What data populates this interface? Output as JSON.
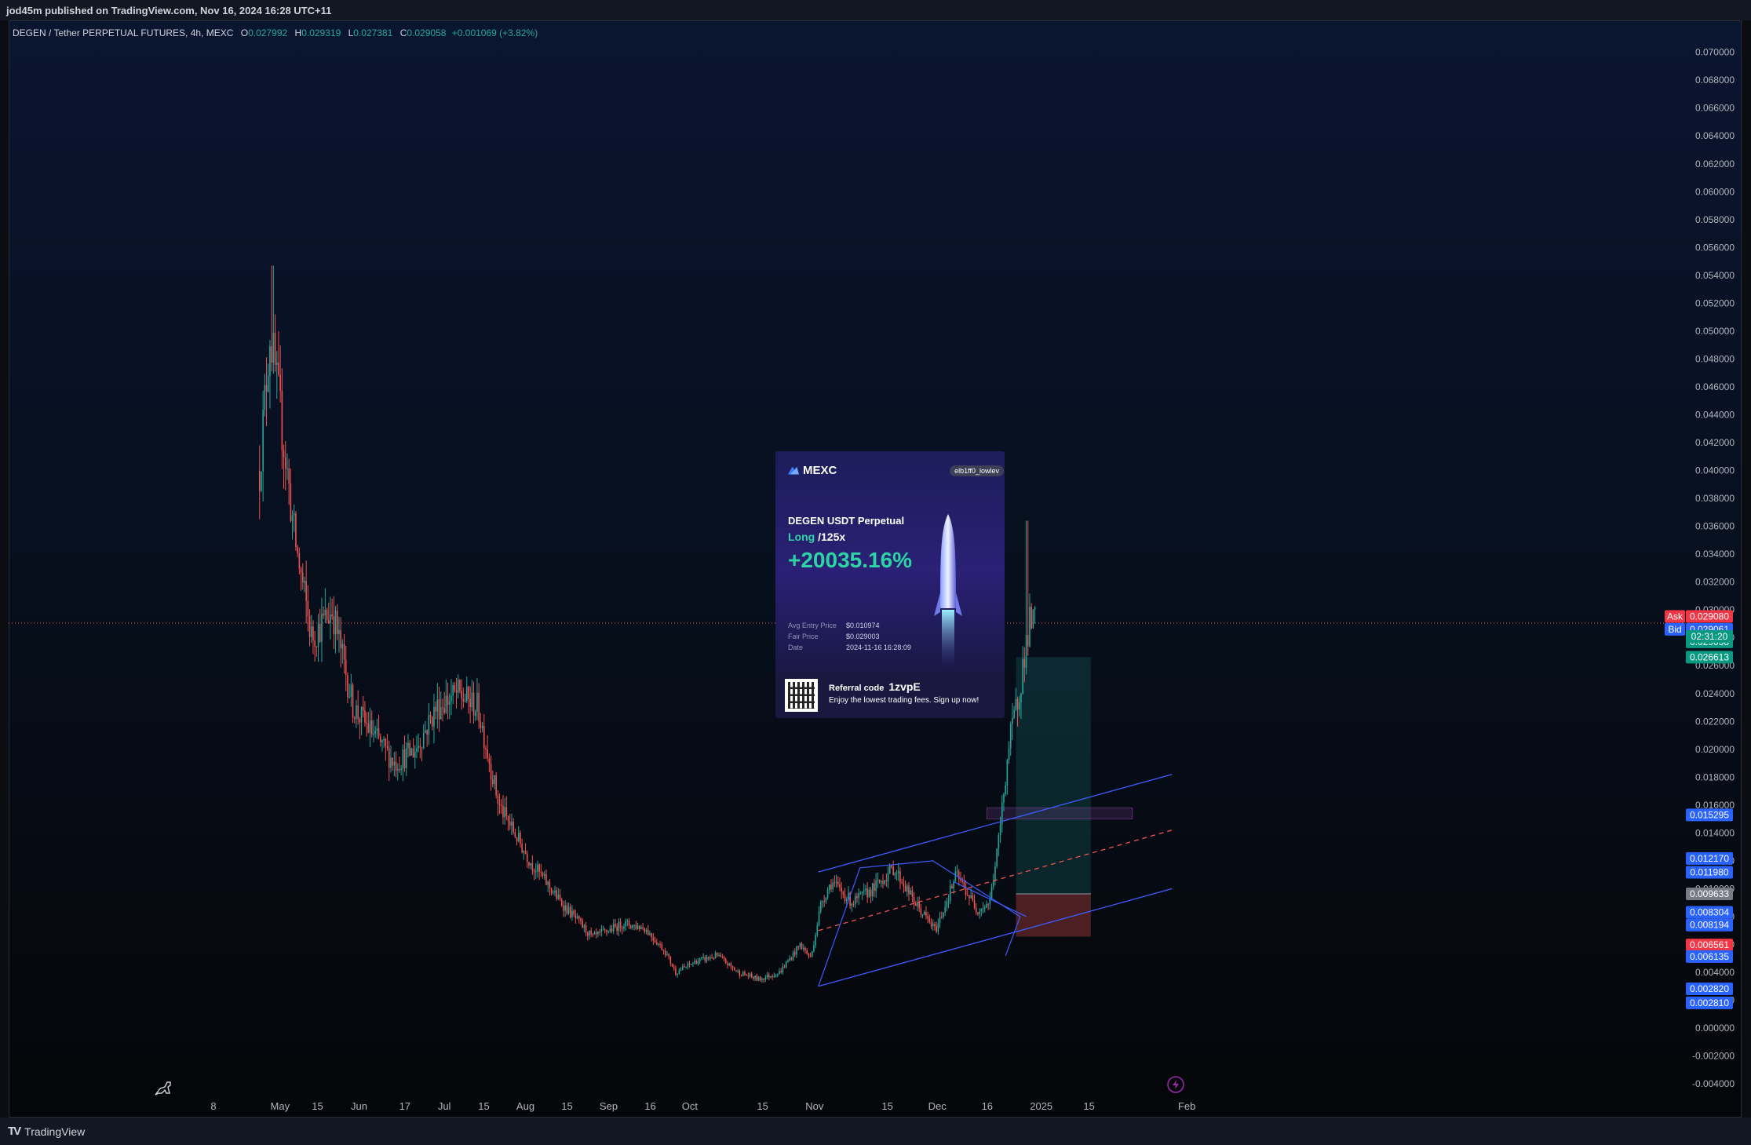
{
  "header": {
    "publish_text": "jod45m published on TradingView.com, Nov 16, 2024 16:28 UTC+11"
  },
  "legend": {
    "symbol": "DEGEN / Tether PERPETUAL FUTURES, 4h, MEXC",
    "open_label": "O",
    "open": "0.027992",
    "high_label": "H",
    "high": "0.029319",
    "low_label": "L",
    "low": "0.027381",
    "close_label": "C",
    "close": "0.029058",
    "change": "+0.001069 (+3.82%)"
  },
  "footer": {
    "brand": "TradingView",
    "logo": "TV"
  },
  "price_badges": {
    "ask_label": "Ask",
    "ask": "0.029080",
    "bid_label": "Bid",
    "bid": "0.029061",
    "last": "0.029058",
    "countdown": "02:31:20",
    "tp": "0.026613",
    "p1": "0.015295",
    "p2": "0.012170",
    "p3": "0.011980",
    "entry": "0.009633",
    "p4": "0.008304",
    "p5": "0.008194",
    "sl": "0.006561",
    "p6": "0.006135",
    "p7": "0.002820",
    "p8": "0.002810"
  },
  "colors": {
    "up": "#26a69a",
    "down": "#ef5350",
    "line": "#2962ff",
    "ask": "#f23645",
    "bid": "#2962ff"
  },
  "icons": {
    "lightning": "lightning-icon",
    "dino": "dino-icon"
  },
  "card": {
    "brand": "MEXC",
    "user": "elb1ff0_lowlev",
    "market": "DEGEN USDT Perpetual",
    "side": "Long",
    "leverage": "/125x",
    "pnl": "+20035.16%",
    "labels": [
      "Avg Entry Price",
      "Fair Price",
      "Date"
    ],
    "values": [
      "$0.010974",
      "$0.029003",
      "2024-11-16 16:28:09"
    ],
    "ref_label": "Referral code",
    "ref_code": "1zvpE",
    "ref_sub": "Enjoy the lowest trading fees. Sign up now!"
  },
  "chart_data": {
    "type": "candlestick",
    "timeframe": "4h",
    "x_ticks": [
      "8",
      "May",
      "15",
      "Jun",
      "17",
      "Jul",
      "15",
      "Aug",
      "15",
      "Sep",
      "16",
      "Oct",
      "15",
      "Nov",
      "15",
      "Dec",
      "16",
      "2025",
      "15",
      "Feb"
    ],
    "y_ticks": [
      "0.070000",
      "0.068000",
      "0.066000",
      "0.064000",
      "0.062000",
      "0.060000",
      "0.058000",
      "0.056000",
      "0.054000",
      "0.052000",
      "0.050000",
      "0.048000",
      "0.046000",
      "0.044000",
      "0.042000",
      "0.040000",
      "0.038000",
      "0.036000",
      "0.034000",
      "0.032000",
      "0.030000",
      "0.028000",
      "0.026000",
      "0.024000",
      "0.022000",
      "0.020000",
      "0.018000",
      "0.016000",
      "0.014000",
      "0.012000",
      "0.010000",
      "0.008000",
      "0.006000",
      "0.004000",
      "0.002000",
      "0.000000",
      "-0.002000",
      "-0.004000"
    ],
    "ylim": [
      -0.0045,
      0.0715
    ],
    "price_path": [
      [
        3.5,
        0.04
      ],
      [
        4.0,
        0.05
      ],
      [
        4.5,
        0.044
      ],
      [
        5.2,
        0.035
      ],
      [
        6.0,
        0.028
      ],
      [
        7.0,
        0.03
      ],
      [
        8.0,
        0.023
      ],
      [
        9.0,
        0.021
      ],
      [
        10.0,
        0.019
      ],
      [
        11.0,
        0.02
      ],
      [
        12.0,
        0.023
      ],
      [
        13.0,
        0.024
      ],
      [
        14.0,
        0.023
      ],
      [
        15.0,
        0.016
      ],
      [
        16.5,
        0.012
      ],
      [
        18.0,
        0.009
      ],
      [
        19.5,
        0.0065
      ],
      [
        21.0,
        0.0075
      ],
      [
        22.0,
        0.0072
      ],
      [
        23.0,
        0.0055
      ],
      [
        23.5,
        0.004
      ],
      [
        24.5,
        0.0048
      ],
      [
        25.5,
        0.0052
      ],
      [
        26.5,
        0.004
      ],
      [
        27.5,
        0.0035
      ],
      [
        28.5,
        0.004
      ],
      [
        29.5,
        0.006
      ],
      [
        30.0,
        0.005
      ],
      [
        30.5,
        0.009
      ],
      [
        31.0,
        0.0105
      ],
      [
        32.0,
        0.009
      ],
      [
        33.0,
        0.01
      ],
      [
        34.0,
        0.0115
      ],
      [
        35.0,
        0.009
      ],
      [
        36.0,
        0.007
      ],
      [
        37.0,
        0.011
      ],
      [
        38.0,
        0.0085
      ],
      [
        38.6,
        0.009
      ],
      [
        39.0,
        0.013
      ],
      [
        39.5,
        0.02
      ],
      [
        40.0,
        0.024
      ],
      [
        40.5,
        0.029
      ],
      [
        40.8,
        0.0291
      ]
    ],
    "spike_high": 0.0364,
    "channel_upper": [
      [
        29.5,
        0.0112
      ],
      [
        46.5,
        0.0182
      ]
    ],
    "channel_lower": [
      [
        29.5,
        0.003
      ],
      [
        46.5,
        0.01
      ]
    ],
    "channel_mid": [
      [
        29.5,
        0.007
      ],
      [
        46.5,
        0.0142
      ]
    ],
    "position": {
      "entry": 0.009633,
      "take_profit": 0.026613,
      "stop_loss": 0.006561
    },
    "zone": [
      0.0158,
      0.015
    ],
    "current_price": 0.029058
  }
}
